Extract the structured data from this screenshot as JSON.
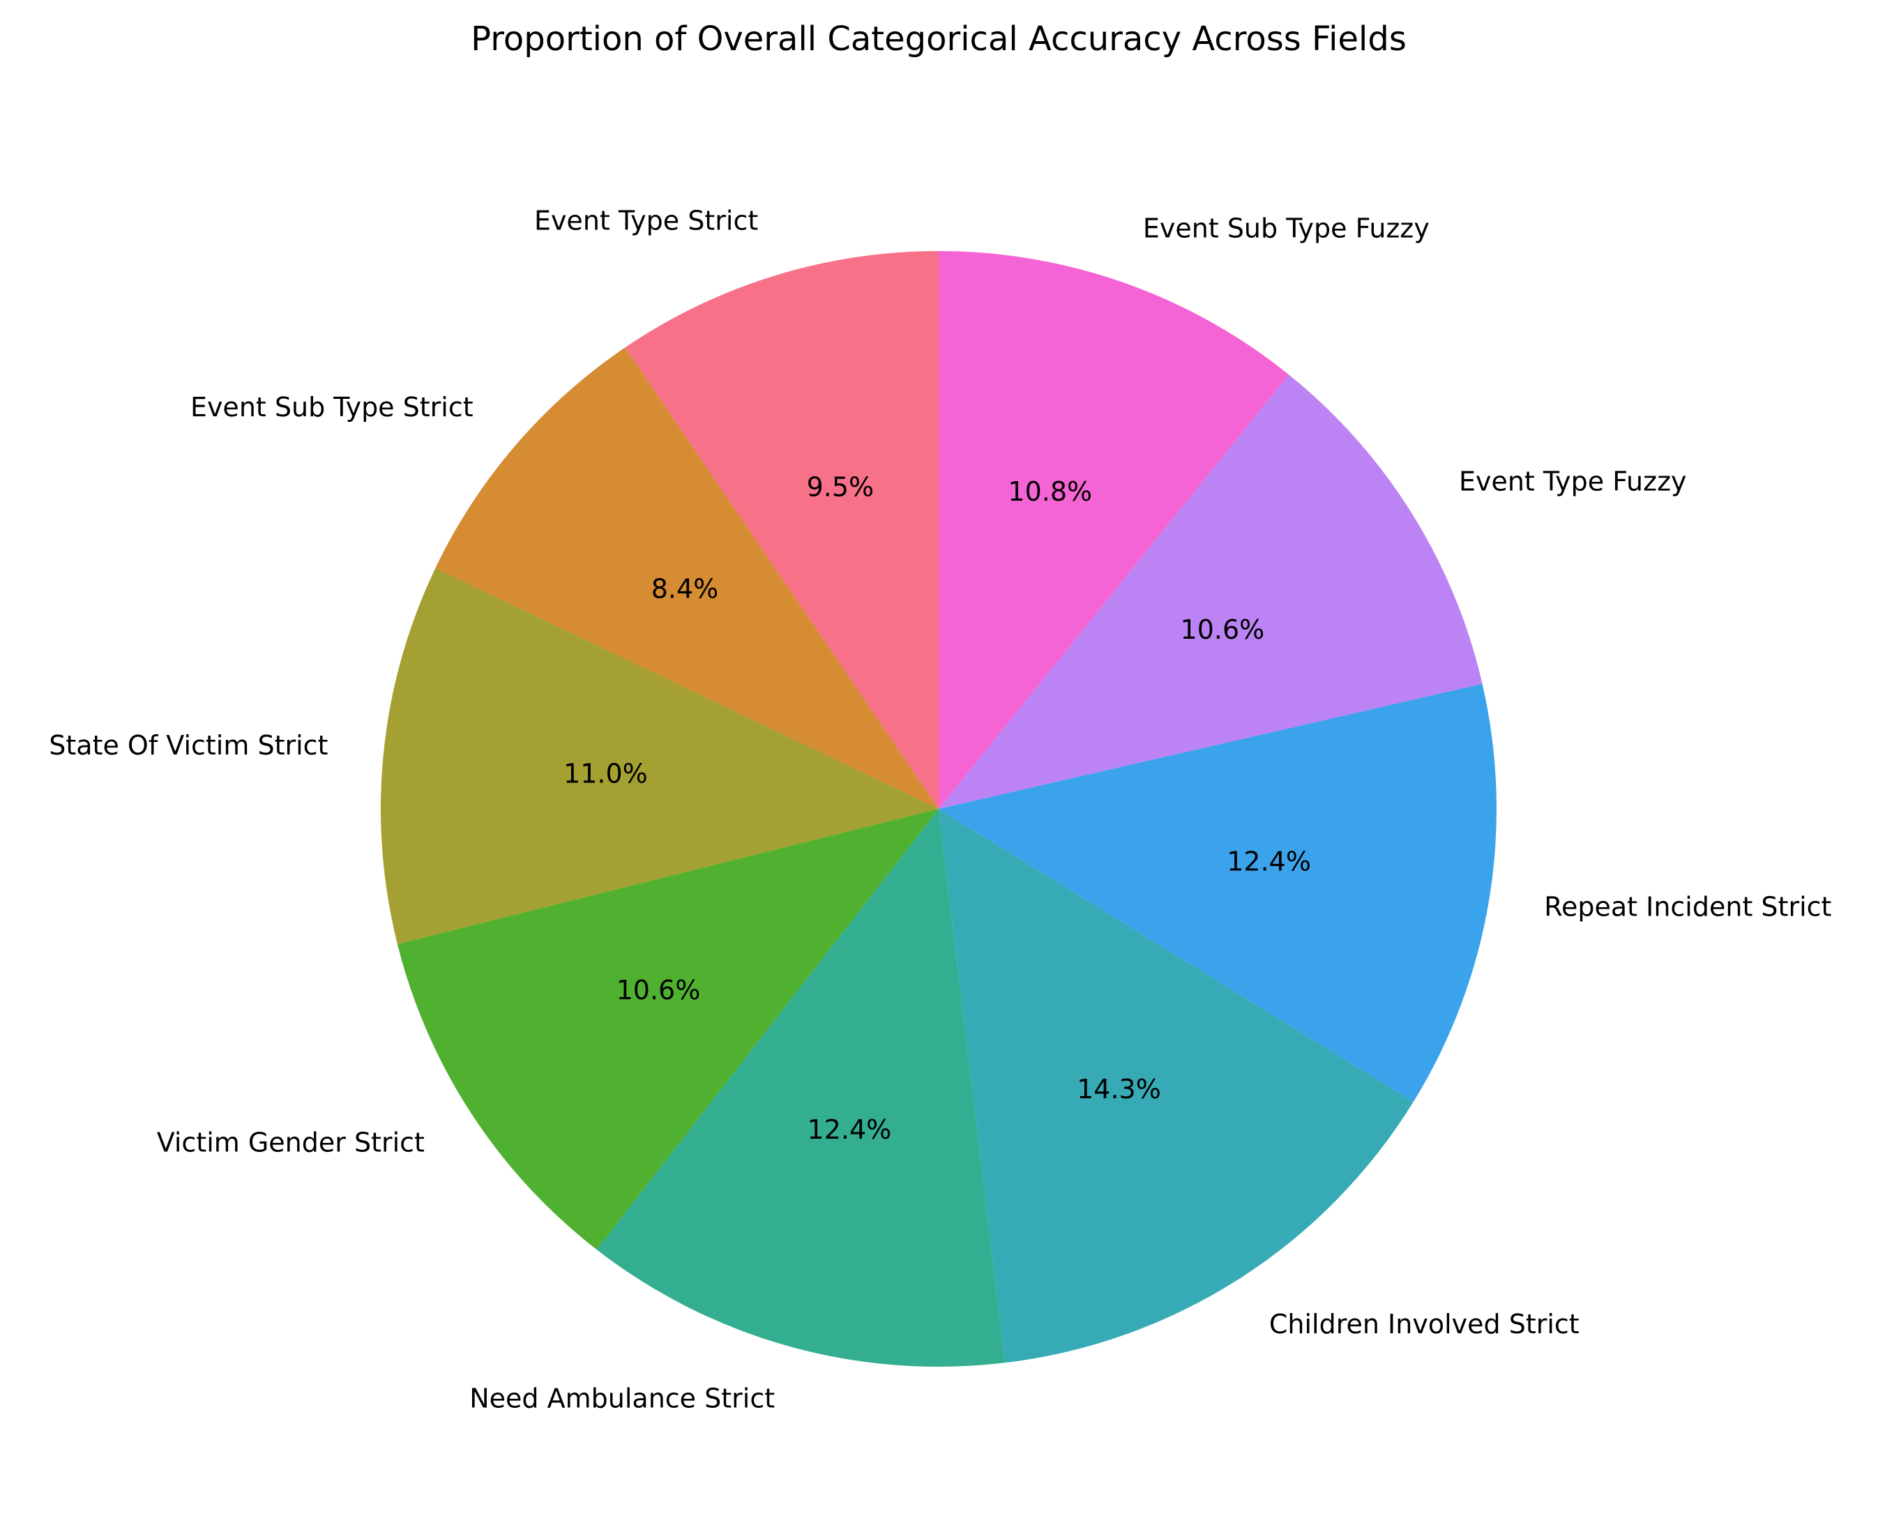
{
  "chart_data": {
    "type": "pie",
    "title": "Proportion of Overall Categorical Accuracy Across Fields",
    "start_angle_deg": 90,
    "direction": "counterclockwise",
    "legend": "none",
    "slices": [
      {
        "label": "Event Type Strict",
        "value": 9.5,
        "pct_text": "9.5%",
        "color": "#f77189"
      },
      {
        "label": "Event Sub Type Strict",
        "value": 8.4,
        "pct_text": "8.4%",
        "color": "#d58c32"
      },
      {
        "label": "State Of Victim Strict",
        "value": 11.0,
        "pct_text": "11.0%",
        "color": "#a4a031"
      },
      {
        "label": "Victim Gender Strict",
        "value": 10.6,
        "pct_text": "10.6%",
        "color": "#50b131"
      },
      {
        "label": "Need Ambulance Strict",
        "value": 12.4,
        "pct_text": "12.4%",
        "color": "#34ae91"
      },
      {
        "label": "Children Involved Strict",
        "value": 14.3,
        "pct_text": "14.3%",
        "color": "#37abb5"
      },
      {
        "label": "Repeat Incident Strict",
        "value": 12.4,
        "pct_text": "12.4%",
        "color": "#3ba3ec"
      },
      {
        "label": "Event Type Fuzzy",
        "value": 10.6,
        "pct_text": "10.6%",
        "color": "#bb83f4"
      },
      {
        "label": "Event Sub Type Fuzzy",
        "value": 10.8,
        "pct_text": "10.8%",
        "color": "#f564d4"
      }
    ]
  }
}
